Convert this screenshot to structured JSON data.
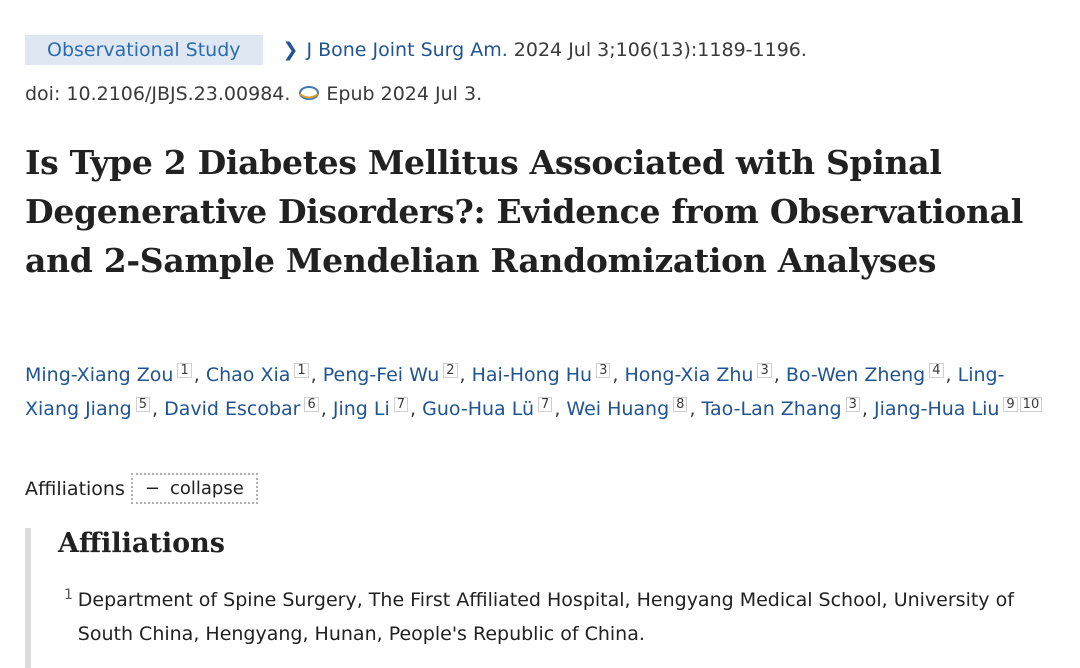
{
  "header": {
    "pub_type": "Observational Study",
    "journal_name": "J Bone Joint Surg Am.",
    "citation": "2024 Jul 3;106(13):1189-1196.",
    "doi": "doi: 10.2106/JBJS.23.00984.",
    "epub": "Epub 2024 Jul 3.",
    "chevron_icon": "chevron-right-icon",
    "epub_icon": "epub-icon"
  },
  "article": {
    "title": "Is Type 2 Diabetes Mellitus Associated with Spinal Degenerative Disorders?: Evidence from Observational and 2-Sample Mendelian Randomization Analyses"
  },
  "authors": [
    {
      "name": "Ming-Xiang Zou",
      "sups": [
        "1"
      ]
    },
    {
      "name": "Chao Xia",
      "sups": [
        "1"
      ]
    },
    {
      "name": "Peng-Fei Wu",
      "sups": [
        "2"
      ]
    },
    {
      "name": "Hai-Hong Hu",
      "sups": [
        "3"
      ]
    },
    {
      "name": "Hong-Xia Zhu",
      "sups": [
        "3"
      ]
    },
    {
      "name": "Bo-Wen Zheng",
      "sups": [
        "4"
      ]
    },
    {
      "name": "Ling-Xiang Jiang",
      "sups": [
        "5"
      ]
    },
    {
      "name": "David Escobar",
      "sups": [
        "6"
      ]
    },
    {
      "name": "Jing Li",
      "sups": [
        "7"
      ]
    },
    {
      "name": "Guo-Hua Lü",
      "sups": [
        "7"
      ]
    },
    {
      "name": "Wei Huang",
      "sups": [
        "8"
      ]
    },
    {
      "name": "Tao-Lan Zhang",
      "sups": [
        "3"
      ]
    },
    {
      "name": "Jiang-Hua Liu",
      "sups": [
        "9",
        "10"
      ]
    }
  ],
  "affiliations_toggle": {
    "label": "Affiliations",
    "button_symbol": "−",
    "button_label": "collapse"
  },
  "affiliations": {
    "heading": "Affiliations",
    "items": [
      {
        "num": "1",
        "text": "Department of Spine Surgery, The First Affiliated Hospital, Hengyang Medical School, University of South China, Hengyang, Hunan, People's Republic of China."
      }
    ]
  }
}
